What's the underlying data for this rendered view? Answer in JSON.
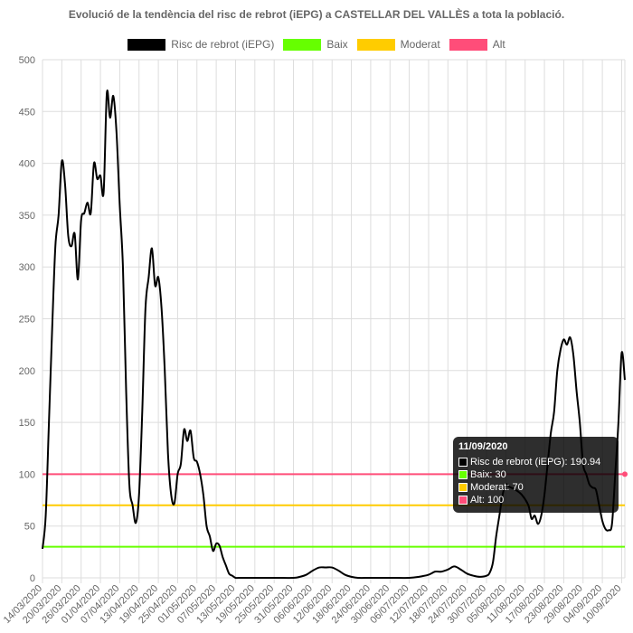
{
  "chart_data": {
    "type": "line",
    "title": "Evolució de la tendència del risc de rebrot (iEPG) a CASTELLAR DEL VALLÈS a tota la població.",
    "ylim": [
      0,
      500
    ],
    "yticks": [
      "0",
      "50",
      "100",
      "150",
      "200",
      "250",
      "300",
      "350",
      "400",
      "450",
      "500"
    ],
    "x_ticks": [
      "14/03/2020",
      "20/03/2020",
      "26/03/2020",
      "01/04/2020",
      "07/04/2020",
      "13/04/2020",
      "19/04/2020",
      "25/04/2020",
      "01/05/2020",
      "07/05/2020",
      "13/05/2020",
      "19/05/2020",
      "25/05/2020",
      "31/05/2020",
      "06/06/2020",
      "12/06/2020",
      "18/06/2020",
      "24/06/2020",
      "30/06/2020",
      "06/07/2020",
      "12/07/2020",
      "18/07/2020",
      "24/07/2020",
      "30/07/2020",
      "05/08/2020",
      "11/08/2020",
      "17/08/2020",
      "23/08/2020",
      "29/08/2020",
      "04/09/2020",
      "10/09/2020"
    ],
    "x_range": [
      "14/03/2020",
      "11/09/2020"
    ],
    "legend": [
      {
        "name": "Risc de rebrot (iEPG)",
        "color": "#000000"
      },
      {
        "name": "Baix",
        "color": "#66ff00"
      },
      {
        "name": "Moderat",
        "color": "#ffcc00"
      },
      {
        "name": "Alt",
        "color": "#ff4d79"
      }
    ],
    "thresholds": [
      {
        "name": "Baix",
        "value": 30,
        "color": "#66ff00"
      },
      {
        "name": "Moderat",
        "value": 70,
        "color": "#ffcc00"
      },
      {
        "name": "Alt",
        "value": 100,
        "color": "#ff4d79"
      }
    ],
    "series": [
      {
        "name": "Risc de rebrot (iEPG)",
        "color": "#000000",
        "x": [
          "14/03/2020",
          "15/03/2020",
          "16/03/2020",
          "17/03/2020",
          "18/03/2020",
          "19/03/2020",
          "20/03/2020",
          "21/03/2020",
          "22/03/2020",
          "23/03/2020",
          "24/03/2020",
          "25/03/2020",
          "26/03/2020",
          "27/03/2020",
          "28/03/2020",
          "29/03/2020",
          "30/03/2020",
          "31/03/2020",
          "01/04/2020",
          "02/04/2020",
          "03/04/2020",
          "04/04/2020",
          "05/04/2020",
          "06/04/2020",
          "07/04/2020",
          "08/04/2020",
          "09/04/2020",
          "10/04/2020",
          "11/04/2020",
          "12/04/2020",
          "13/04/2020",
          "14/04/2020",
          "15/04/2020",
          "16/04/2020",
          "17/04/2020",
          "18/04/2020",
          "19/04/2020",
          "20/04/2020",
          "21/04/2020",
          "22/04/2020",
          "23/04/2020",
          "24/04/2020",
          "25/04/2020",
          "26/04/2020",
          "27/04/2020",
          "28/04/2020",
          "29/04/2020",
          "30/04/2020",
          "01/05/2020",
          "02/05/2020",
          "03/05/2020",
          "04/05/2020",
          "05/05/2020",
          "06/05/2020",
          "07/05/2020",
          "08/05/2020",
          "09/05/2020",
          "10/05/2020",
          "11/05/2020",
          "12/05/2020",
          "13/05/2020",
          "14/05/2020",
          "16/05/2020",
          "19/05/2020",
          "25/05/2020",
          "31/05/2020",
          "02/06/2020",
          "04/06/2020",
          "06/06/2020",
          "08/06/2020",
          "10/06/2020",
          "12/06/2020",
          "14/06/2020",
          "16/06/2020",
          "18/06/2020",
          "20/06/2020",
          "24/06/2020",
          "30/06/2020",
          "06/07/2020",
          "09/07/2020",
          "12/07/2020",
          "14/07/2020",
          "16/07/2020",
          "18/07/2020",
          "20/07/2020",
          "22/07/2020",
          "24/07/2020",
          "26/07/2020",
          "28/07/2020",
          "30/07/2020",
          "31/07/2020",
          "01/08/2020",
          "02/08/2020",
          "03/08/2020",
          "04/08/2020",
          "05/08/2020",
          "06/08/2020",
          "08/08/2020",
          "10/08/2020",
          "12/08/2020",
          "13/08/2020",
          "14/08/2020",
          "15/08/2020",
          "16/08/2020",
          "17/08/2020",
          "18/08/2020",
          "19/08/2020",
          "20/08/2020",
          "21/08/2020",
          "22/08/2020",
          "23/08/2020",
          "24/08/2020",
          "25/08/2020",
          "26/08/2020",
          "27/08/2020",
          "28/08/2020",
          "29/08/2020",
          "30/08/2020",
          "31/08/2020",
          "01/09/2020",
          "02/09/2020",
          "03/09/2020",
          "04/09/2020",
          "05/09/2020",
          "06/09/2020",
          "07/09/2020",
          "08/09/2020",
          "09/09/2020",
          "10/09/2020",
          "11/09/2020"
        ],
        "values": [
          28,
          60,
          150,
          240,
          320,
          350,
          402,
          380,
          330,
          320,
          332,
          288,
          345,
          352,
          362,
          352,
          400,
          385,
          388,
          372,
          468,
          444,
          465,
          430,
          360,
          300,
          180,
          90,
          70,
          53,
          80,
          160,
          260,
          290,
          318,
          282,
          290,
          260,
          200,
          120,
          80,
          72,
          100,
          110,
          143,
          132,
          142,
          116,
          112,
          100,
          80,
          50,
          40,
          26,
          33,
          31,
          20,
          12,
          4,
          2,
          0,
          0,
          0,
          0,
          0,
          0,
          1,
          3,
          7,
          10,
          10,
          10,
          7,
          3,
          1,
          0,
          0,
          0,
          0,
          1,
          3,
          6,
          6,
          8,
          11,
          8,
          4,
          2,
          1,
          2,
          5,
          15,
          40,
          60,
          80,
          90,
          88,
          85,
          80,
          70,
          57,
          60,
          52,
          60,
          80,
          110,
          140,
          160,
          200,
          220,
          230,
          225,
          232,
          215,
          180,
          150,
          110,
          100,
          90,
          87,
          85,
          70,
          55,
          47,
          46,
          52,
          100,
          150,
          217,
          190.94
        ]
      }
    ],
    "tooltip": {
      "title": "11/09/2020",
      "rows": [
        {
          "label": "Risc de rebrot (iEPG): 190.94",
          "color": "#000000"
        },
        {
          "label": "Baix: 30",
          "color": "#66ff00"
        },
        {
          "label": "Moderat: 70",
          "color": "#ffcc00"
        },
        {
          "label": "Alt: 100",
          "color": "#ff4d79"
        }
      ]
    }
  }
}
